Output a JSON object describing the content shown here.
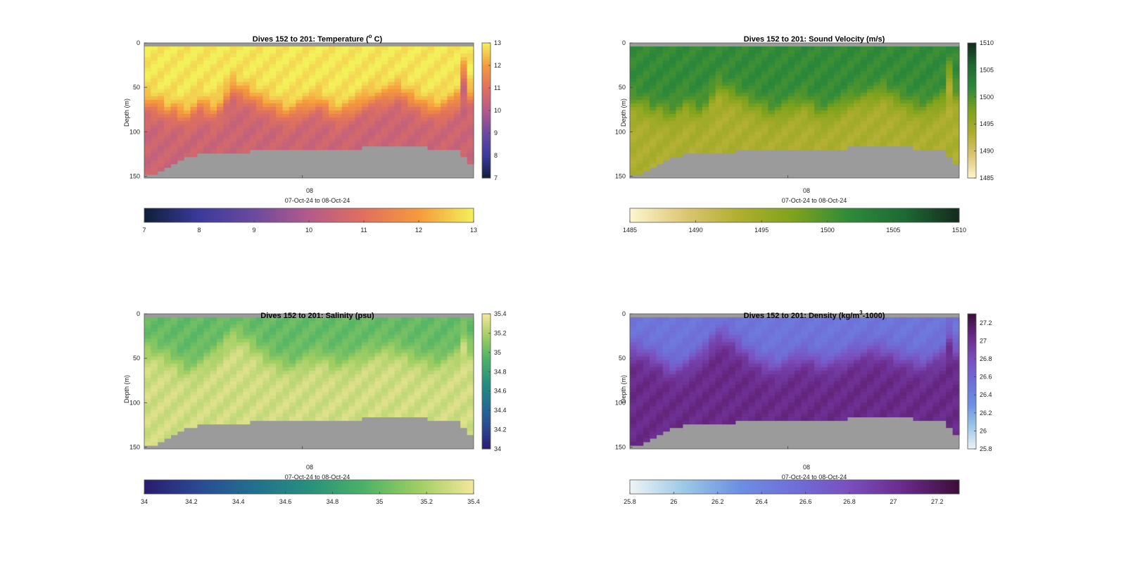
{
  "figure": {
    "panels": [
      {
        "id": "temperature",
        "title": "Dives 152 to 201: Temperature (",
        "title_sup": "o",
        "title_suffix": " C)",
        "ylabel": "Depth (m)",
        "x_tick_label": "08",
        "xlabel": "07-Oct-24 to 08-Oct-24"
      },
      {
        "id": "sound-velocity",
        "title": "Dives 152 to 201: Sound Velocity (m/s)",
        "ylabel": "Depth (m)",
        "x_tick_label": "08",
        "xlabel": "07-Oct-24 to 08-Oct-24"
      },
      {
        "id": "salinity",
        "title": "Dives 152 to 201: Salinity (psu)",
        "ylabel": "Depth (m)",
        "x_tick_label": "08",
        "xlabel": "07-Oct-24 to 08-Oct-24"
      },
      {
        "id": "density",
        "title": "Dives 152 to 201: Density (kg/m",
        "title_sup": "3",
        "title_suffix": "-1000)",
        "ylabel": "Depth (m)",
        "x_tick_label": "08",
        "xlabel": "07-Oct-24 to 08-Oct-24"
      }
    ]
  },
  "chart_data": [
    {
      "type": "heatmap",
      "variable": "Temperature",
      "unit": "°C",
      "ylabel": "Depth (m)",
      "y_reversed": true,
      "ylim": [
        0,
        152
      ],
      "yticks": [
        0,
        50,
        100,
        150
      ],
      "xlabel": "07-Oct-24 to 08-Oct-24",
      "xticks": [
        "08"
      ],
      "xtick_fraction": [
        0.48
      ],
      "clim": [
        7,
        13
      ],
      "colorbar_ticks": [
        7,
        8,
        9,
        10,
        11,
        12,
        13
      ],
      "colormap": [
        "#0f1f38",
        "#3a3a9c",
        "#6b4a9e",
        "#b45a8a",
        "#e0705e",
        "#f59a3c",
        "#f3f05a"
      ],
      "nodata_color": "#9b9b9b",
      "profiles": {
        "mixed_layer_depth_m": [
          68,
          70,
          72,
          78,
          75,
          80,
          82,
          76,
          70,
          74,
          78,
          72,
          60,
          50,
          55,
          58,
          62,
          66,
          70,
          72,
          76,
          80,
          78,
          74,
          72,
          70,
          68,
          72,
          78,
          80,
          76,
          74,
          70,
          66,
          64,
          62,
          60,
          58,
          55,
          60,
          64,
          68,
          72,
          74,
          76,
          72,
          68,
          64,
          30,
          60
        ],
        "bottom_depth_m": [
          148,
          146,
          142,
          138,
          134,
          131,
          129,
          127,
          125,
          124,
          123,
          122,
          122,
          122,
          122,
          122,
          121,
          121,
          121,
          120,
          120,
          120,
          120,
          119,
          119,
          119,
          119,
          119,
          118,
          118,
          118,
          118,
          118,
          117,
          117,
          117,
          117,
          117,
          117,
          117,
          117,
          117,
          117,
          118,
          118,
          118,
          119,
          120,
          126,
          136
        ],
        "surface_value": 12.9,
        "deep_value": 10.5
      }
    },
    {
      "type": "heatmap",
      "variable": "Sound Velocity",
      "unit": "m/s",
      "ylabel": "Depth (m)",
      "y_reversed": true,
      "ylim": [
        0,
        152
      ],
      "yticks": [
        0,
        50,
        100,
        150
      ],
      "xlabel": "07-Oct-24 to 08-Oct-24",
      "xticks": [
        "08"
      ],
      "xtick_fraction": [
        0.48
      ],
      "clim": [
        1485,
        1510
      ],
      "colorbar_ticks": [
        1485,
        1490,
        1495,
        1500,
        1505,
        1510
      ],
      "colormap": [
        "#fdf6cf",
        "#dcc774",
        "#aeae2e",
        "#7ea21c",
        "#2e8a3a",
        "#1d6a34",
        "#142a1c"
      ],
      "nodata_color": "#9b9b9b",
      "profiles": {
        "mixed_layer_depth_m": [
          68,
          70,
          72,
          78,
          75,
          80,
          82,
          76,
          70,
          74,
          78,
          72,
          60,
          50,
          55,
          58,
          62,
          66,
          70,
          72,
          76,
          80,
          78,
          74,
          72,
          70,
          68,
          72,
          78,
          80,
          76,
          74,
          70,
          66,
          64,
          62,
          60,
          58,
          55,
          60,
          64,
          68,
          72,
          74,
          76,
          72,
          68,
          64,
          30,
          60
        ],
        "bottom_depth_m": [
          148,
          146,
          142,
          138,
          134,
          131,
          129,
          127,
          125,
          124,
          123,
          122,
          122,
          122,
          122,
          122,
          121,
          121,
          121,
          120,
          120,
          120,
          120,
          119,
          119,
          119,
          119,
          119,
          118,
          118,
          118,
          118,
          118,
          117,
          117,
          117,
          117,
          117,
          117,
          117,
          117,
          117,
          117,
          118,
          118,
          118,
          119,
          120,
          126,
          136
        ],
        "surface_value": 1501.5,
        "deep_value": 1493.5
      }
    },
    {
      "type": "heatmap",
      "variable": "Salinity",
      "unit": "psu",
      "ylabel": "Depth (m)",
      "y_reversed": true,
      "ylim": [
        0,
        152
      ],
      "yticks": [
        0,
        50,
        100,
        150
      ],
      "xlabel": "07-Oct-24 to 08-Oct-24",
      "xticks": [
        "08"
      ],
      "xtick_fraction": [
        0.48
      ],
      "clim": [
        34,
        35.4
      ],
      "colorbar_ticks": [
        34,
        34.2,
        34.4,
        34.6,
        34.8,
        35,
        35.2,
        35.4
      ],
      "colormap": [
        "#2a1b6e",
        "#2a4a94",
        "#21708f",
        "#27907e",
        "#4cb266",
        "#9fce62",
        "#f5e79a"
      ],
      "nodata_color": "#9b9b9b",
      "profiles": {
        "mixed_layer_depth_m": [
          40,
          42,
          45,
          48,
          52,
          58,
          62,
          60,
          56,
          50,
          46,
          40,
          30,
          24,
          26,
          30,
          36,
          42,
          48,
          52,
          56,
          58,
          60,
          56,
          52,
          50,
          48,
          50,
          54,
          56,
          54,
          52,
          50,
          46,
          44,
          42,
          40,
          40,
          42,
          44,
          48,
          50,
          52,
          54,
          56,
          52,
          48,
          44,
          24,
          40
        ],
        "bottom_depth_m": [
          148,
          146,
          142,
          138,
          134,
          131,
          129,
          127,
          125,
          124,
          123,
          122,
          122,
          122,
          122,
          122,
          121,
          121,
          121,
          120,
          120,
          120,
          120,
          119,
          119,
          119,
          119,
          119,
          118,
          118,
          118,
          118,
          118,
          117,
          117,
          117,
          117,
          117,
          117,
          117,
          117,
          117,
          117,
          118,
          118,
          118,
          119,
          120,
          126,
          136
        ],
        "surface_value": 35.0,
        "deep_value": 35.3
      }
    },
    {
      "type": "heatmap",
      "variable": "Density",
      "unit": "kg/m3-1000",
      "ylabel": "Depth (m)",
      "y_reversed": true,
      "ylim": [
        0,
        152
      ],
      "yticks": [
        0,
        50,
        100,
        150
      ],
      "xlabel": "07-Oct-24 to 08-Oct-24",
      "xticks": [
        "08"
      ],
      "xtick_fraction": [
        0.48
      ],
      "clim": [
        25.8,
        27.3
      ],
      "colorbar_ticks": [
        25.8,
        26,
        26.2,
        26.4,
        26.6,
        26.8,
        27,
        27.2
      ],
      "colormap": [
        "#eef4f6",
        "#9cc8e6",
        "#6c8fe2",
        "#6f6fd8",
        "#7a4fbe",
        "#6a2a8a",
        "#3b0e38"
      ],
      "nodata_color": "#9b9b9b",
      "profiles": {
        "mixed_layer_depth_m": [
          40,
          42,
          45,
          48,
          52,
          58,
          62,
          60,
          56,
          50,
          46,
          40,
          30,
          24,
          26,
          30,
          36,
          42,
          48,
          52,
          56,
          58,
          60,
          56,
          52,
          50,
          48,
          50,
          54,
          56,
          54,
          52,
          50,
          46,
          44,
          42,
          40,
          40,
          42,
          44,
          48,
          50,
          52,
          54,
          56,
          52,
          48,
          44,
          24,
          40
        ],
        "bottom_depth_m": [
          148,
          146,
          142,
          138,
          134,
          131,
          129,
          127,
          125,
          124,
          123,
          122,
          122,
          122,
          122,
          122,
          121,
          121,
          121,
          120,
          120,
          120,
          120,
          119,
          119,
          119,
          119,
          119,
          118,
          118,
          118,
          118,
          118,
          117,
          117,
          117,
          117,
          117,
          117,
          117,
          117,
          117,
          117,
          118,
          118,
          118,
          119,
          120,
          126,
          136
        ],
        "surface_value": 26.5,
        "deep_value": 27.05
      }
    }
  ]
}
